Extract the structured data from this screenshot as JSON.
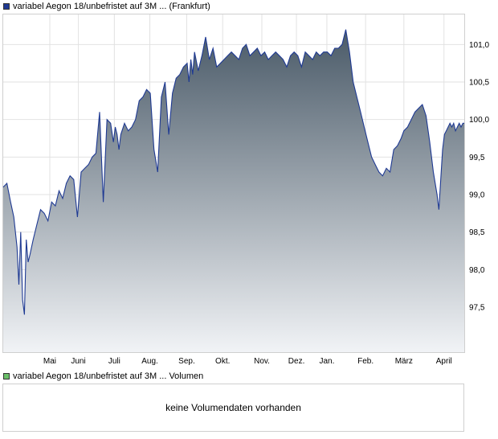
{
  "legend": {
    "price_label": "variabel Aegon 18/unbefristet auf 3M ... (Frankfurt)",
    "price_color": "#1f3a93",
    "volume_label": "variabel Aegon 18/unbefristet auf 3M ... Volumen",
    "volume_color": "#6abf69"
  },
  "volume_panel": {
    "message": "keine Volumendaten vorhanden"
  },
  "chart_data": {
    "type": "area",
    "grid": true,
    "ylim": [
      96.9,
      101.4
    ],
    "ytick_values": [
      97.5,
      98.0,
      98.5,
      99.0,
      99.5,
      100.0,
      100.5,
      101.0
    ],
    "ytick_labels": [
      "97,5",
      "98,0",
      "98,5",
      "99,0",
      "99,5",
      "100,0",
      "100,5",
      "101,0"
    ],
    "xlim": [
      0,
      100
    ],
    "xtick_values": [
      10.1,
      16.3,
      24.1,
      31.8,
      39.8,
      47.6,
      56.1,
      63.6,
      70.2,
      78.6,
      86.9,
      95.6
    ],
    "xtick_labels": [
      "Mai",
      "Juni",
      "Juli",
      "Aug.",
      "Sep.",
      "Okt.",
      "Nov.",
      "Dez.",
      "Jan.",
      "Feb.",
      "März",
      "April"
    ],
    "line_color": "#1f3a93",
    "fill_top_color": "#4a5a68",
    "fill_bottom_color": "#f1f3f6",
    "x": [
      0,
      0.8,
      1.6,
      2.3,
      3.0,
      3.4,
      3.8,
      4.2,
      4.6,
      5.0,
      5.4,
      5.8,
      6.5,
      7.3,
      8.1,
      8.9,
      9.7,
      10.5,
      11.3,
      12.1,
      12.9,
      13.7,
      14.5,
      15.3,
      16.1,
      16.9,
      17.7,
      18.5,
      19.3,
      20.1,
      20.9,
      21.7,
      22.5,
      23.3,
      23.9,
      24.3,
      24.7,
      25.1,
      25.5,
      26.3,
      27.1,
      27.9,
      28.7,
      29.5,
      30.3,
      31.1,
      31.9,
      32.7,
      33.5,
      34.3,
      35.1,
      35.9,
      36.7,
      37.5,
      38.3,
      39.1,
      39.9,
      40.3,
      40.7,
      41.1,
      41.5,
      42.3,
      43.1,
      43.9,
      44.7,
      45.5,
      46.3,
      47.1,
      47.9,
      48.7,
      49.5,
      50.3,
      51.1,
      51.9,
      52.7,
      53.5,
      54.3,
      55.1,
      55.9,
      56.7,
      57.5,
      58.3,
      59.1,
      59.9,
      60.7,
      61.5,
      62.3,
      63.1,
      63.9,
      64.7,
      65.5,
      66.3,
      67.1,
      67.9,
      68.7,
      69.5,
      70.3,
      71.1,
      71.9,
      72.7,
      73.5,
      74.3,
      75.1,
      75.9,
      76.7,
      77.5,
      78.3,
      79.1,
      79.9,
      80.7,
      81.5,
      82.3,
      83.1,
      83.9,
      84.7,
      85.5,
      86.3,
      86.9,
      87.7,
      88.5,
      89.3,
      90.1,
      90.9,
      91.7,
      92.5,
      93.3,
      94.1,
      94.5,
      94.9,
      95.3,
      95.7,
      96.1,
      96.5,
      96.9,
      97.3,
      97.7,
      98.1,
      98.5,
      98.9,
      99.3,
      99.7,
      100
    ],
    "y": [
      99.1,
      99.15,
      98.9,
      98.7,
      98.3,
      97.8,
      98.5,
      97.6,
      97.4,
      98.4,
      98.1,
      98.2,
      98.4,
      98.6,
      98.8,
      98.75,
      98.65,
      98.9,
      98.85,
      99.05,
      98.95,
      99.15,
      99.25,
      99.2,
      98.7,
      99.3,
      99.35,
      99.4,
      99.5,
      99.55,
      100.1,
      98.9,
      100.0,
      99.95,
      99.7,
      99.9,
      99.8,
      99.6,
      99.8,
      99.95,
      99.85,
      99.9,
      100.0,
      100.25,
      100.3,
      100.4,
      100.35,
      99.6,
      99.3,
      100.3,
      100.5,
      99.8,
      100.35,
      100.55,
      100.6,
      100.7,
      100.75,
      100.5,
      100.8,
      100.6,
      100.9,
      100.65,
      100.85,
      101.1,
      100.8,
      100.95,
      100.7,
      100.75,
      100.8,
      100.85,
      100.9,
      100.85,
      100.8,
      100.95,
      101.0,
      100.85,
      100.9,
      100.95,
      100.85,
      100.9,
      100.8,
      100.85,
      100.9,
      100.85,
      100.8,
      100.7,
      100.85,
      100.9,
      100.85,
      100.7,
      100.9,
      100.85,
      100.8,
      100.9,
      100.85,
      100.9,
      100.9,
      100.85,
      100.95,
      100.95,
      101.0,
      101.2,
      100.9,
      100.5,
      100.3,
      100.1,
      99.9,
      99.7,
      99.5,
      99.4,
      99.3,
      99.25,
      99.35,
      99.3,
      99.6,
      99.65,
      99.75,
      99.85,
      99.9,
      100.0,
      100.1,
      100.15,
      100.2,
      100.05,
      99.7,
      99.3,
      99.0,
      98.8,
      99.2,
      99.6,
      99.8,
      99.85,
      99.9,
      99.95,
      99.9,
      99.95,
      99.85,
      99.9,
      99.95,
      99.9,
      99.95,
      99.95
    ]
  }
}
